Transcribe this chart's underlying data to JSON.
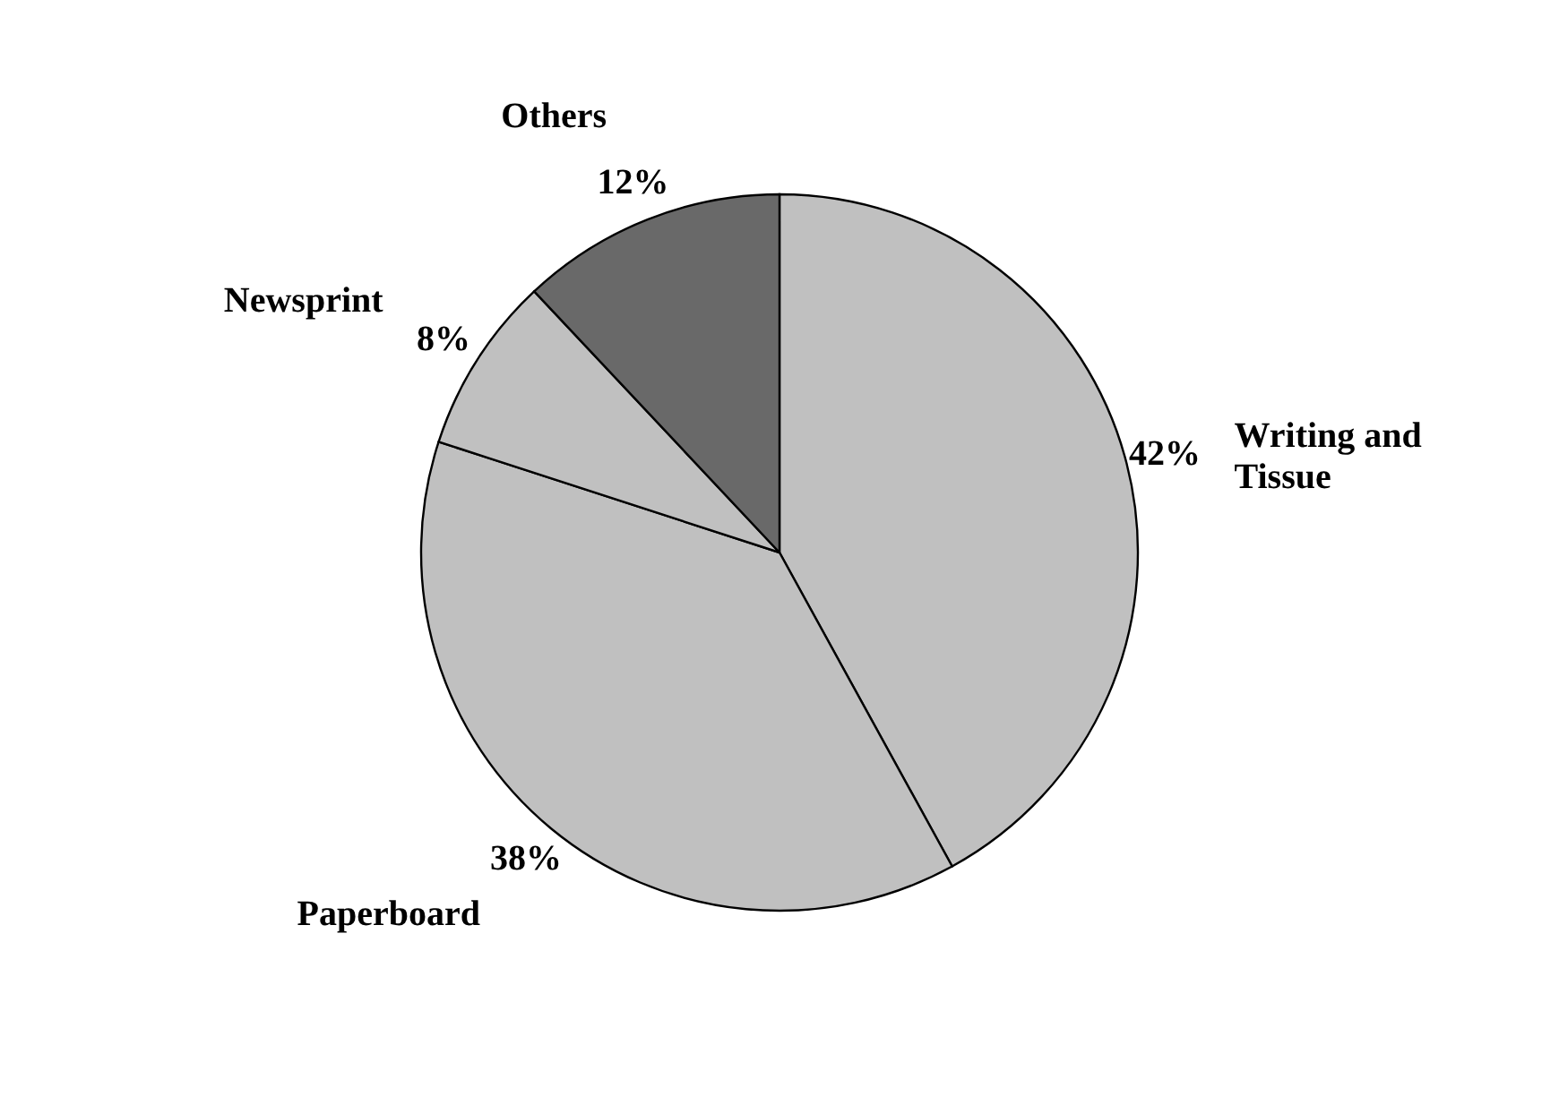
{
  "chart_data": {
    "type": "pie",
    "categories": [
      "Writing and Tissue",
      "Paperboard",
      "Newsprint",
      "Others"
    ],
    "values": [
      42,
      38,
      8,
      12
    ],
    "value_labels": [
      "42%",
      "38%",
      "8%",
      "12%"
    ],
    "colors": [
      "#c0c0c0",
      "#c0c0c0",
      "#c0c0c0",
      "#696969"
    ],
    "legend": false
  }
}
